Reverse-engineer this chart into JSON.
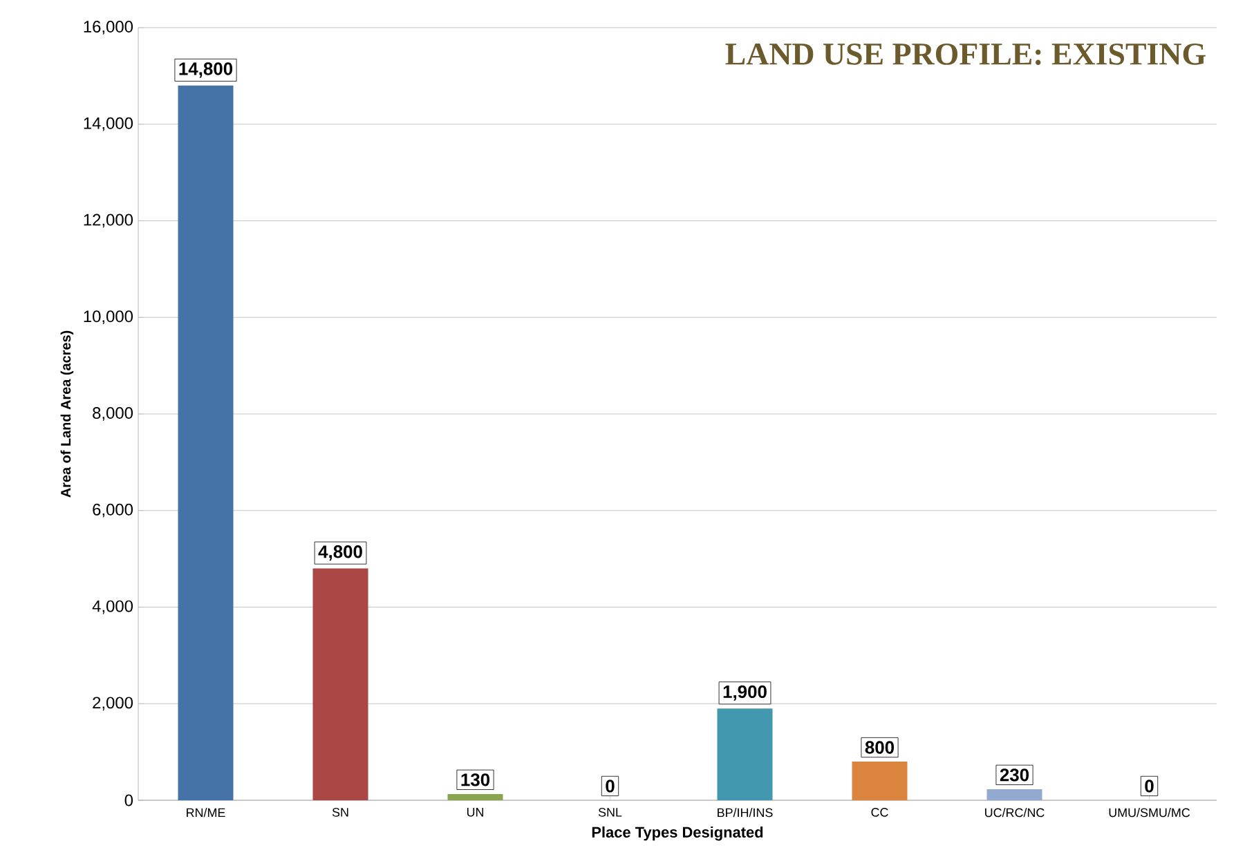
{
  "chart_data": {
    "type": "bar",
    "title": "LAND USE PROFILE: EXISTING",
    "xlabel": "Place Types Designated",
    "ylabel": "Area of Land Area (acres)",
    "categories": [
      "RN/ME",
      "SN",
      "UN",
      "SNL",
      "BP/IH/INS",
      "CC",
      "UC/RC/NC",
      "UMU/SMU/MC"
    ],
    "values": [
      14800,
      4800,
      130,
      0,
      1900,
      800,
      230,
      0
    ],
    "value_labels": [
      "14,800",
      "4,800",
      "130",
      "0",
      "1,900",
      "800",
      "230",
      "0"
    ],
    "colors": [
      "#4572a7",
      "#aa4643",
      "#89a54e",
      "#71588f",
      "#4198af",
      "#db843d",
      "#93a9cf",
      "#b9cd96"
    ],
    "ylim": [
      0,
      16000
    ],
    "yticks": [
      {
        "value": 0,
        "label": "0"
      },
      {
        "value": 2000,
        "label": "2,000"
      },
      {
        "value": 4000,
        "label": "4,000"
      },
      {
        "value": 6000,
        "label": "6,000"
      },
      {
        "value": 8000,
        "label": "8,000"
      },
      {
        "value": 10000,
        "label": "10,000"
      },
      {
        "value": 12000,
        "label": "12,000"
      },
      {
        "value": 14000,
        "label": "14,000"
      },
      {
        "value": 16000,
        "label": "16,000"
      }
    ],
    "grid": "y"
  }
}
